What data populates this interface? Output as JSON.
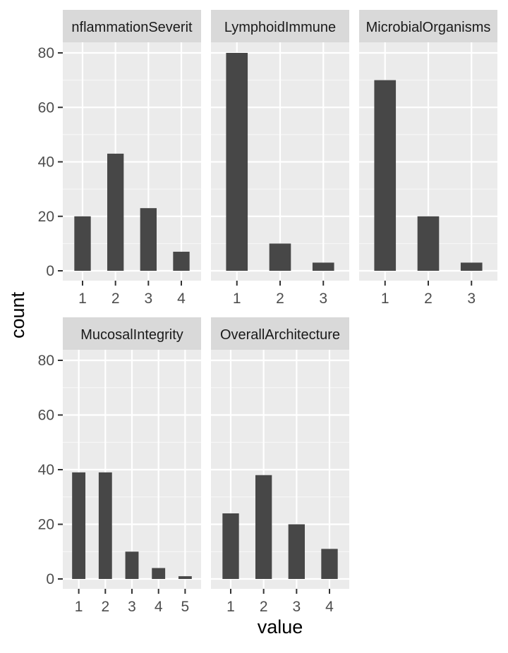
{
  "chart_data": {
    "type": "bar",
    "layout": "facet-grid",
    "xlabel": "value",
    "ylabel": "count",
    "ylim": [
      0,
      84
    ],
    "yticks": [
      0,
      20,
      40,
      60,
      80
    ],
    "grid": true,
    "colors": {
      "bar": "#474747",
      "panel_bg": "#ebebeb",
      "strip_bg": "#d9d9d9",
      "grid": "#ffffff",
      "text": "#4d4d4d",
      "strip_text": "#1a1a1a"
    },
    "panels": [
      {
        "title": "InflammationSeverity",
        "shown_label": "nflammationSeverit",
        "categories": [
          "1",
          "2",
          "3",
          "4"
        ],
        "values": [
          20,
          43,
          23,
          7
        ]
      },
      {
        "title": "LymphoidImmune",
        "shown_label": "LymphoidImmune",
        "categories": [
          "1",
          "2",
          "3"
        ],
        "values": [
          80,
          10,
          3
        ]
      },
      {
        "title": "MicrobialOrganisms",
        "shown_label": "MicrobialOrganisms",
        "categories": [
          "1",
          "2",
          "3"
        ],
        "values": [
          70,
          20,
          3
        ]
      },
      {
        "title": "MucosalIntegrity",
        "shown_label": "MucosalIntegrity",
        "categories": [
          "1",
          "2",
          "3",
          "4",
          "5"
        ],
        "values": [
          39,
          39,
          10,
          4,
          1
        ]
      },
      {
        "title": "OverallArchitecture",
        "shown_label": "OverallArchitecture",
        "categories": [
          "1",
          "2",
          "3",
          "4"
        ],
        "values": [
          24,
          38,
          20,
          11
        ]
      }
    ]
  }
}
